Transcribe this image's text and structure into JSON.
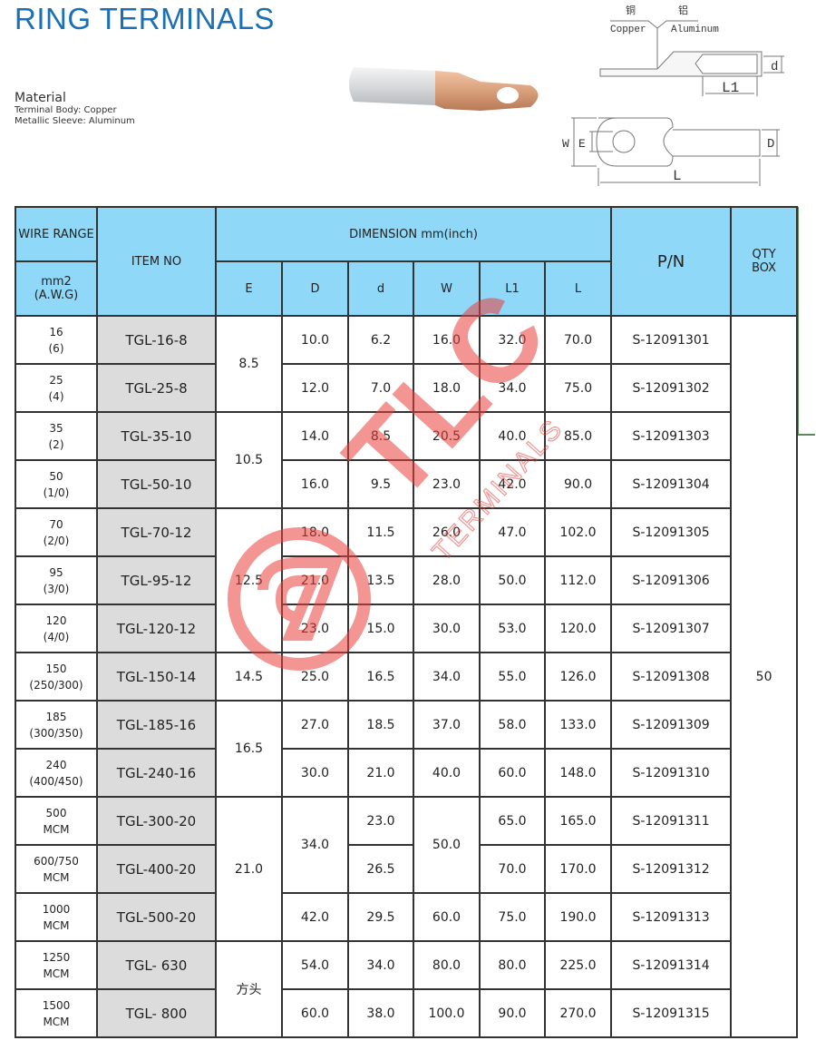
{
  "title": "RING TERMINALS",
  "material": {
    "heading": "Material",
    "lines": [
      "Terminal Body: Copper",
      "Metallic Sleeve: Aluminum"
    ]
  },
  "diagram": {
    "copper_cn": "铜",
    "aluminum_cn": "铝",
    "copper": "Copper",
    "aluminum": "Aluminum",
    "labels": {
      "d": "d",
      "L1": "L1",
      "W": "W",
      "E": "E",
      "D": "D",
      "L": "L"
    }
  },
  "watermark": {
    "brand": "TLC",
    "sub": "TERMINALS",
    "color": "#e8403c"
  },
  "table": {
    "headers": {
      "wire_range": "WIRE RANGE",
      "wire_unit_1": "mm2",
      "wire_unit_2": "(A.W.G)",
      "item_no": "ITEM NO",
      "dimension": "DIMENSION mm(inch)",
      "E": "E",
      "D": "D",
      "d": "d",
      "W": "W",
      "L1": "L1",
      "L": "L",
      "pn": "P/N",
      "qty_1": "QTY",
      "qty_2": "BOX"
    },
    "qty_box": "50",
    "rows": [
      {
        "wire1": "16",
        "wire2": "(6)",
        "item": "TGL-16-8",
        "E": "8.5",
        "D": "10.0",
        "d": "6.2",
        "W": "16.0",
        "L1": "32.0",
        "L": "70.0",
        "pn": "S-12091301"
      },
      {
        "wire1": "25",
        "wire2": "(4)",
        "item": "TGL-25-8",
        "E": null,
        "D": "12.0",
        "d": "7.0",
        "W": "18.0",
        "L1": "34.0",
        "L": "75.0",
        "pn": "S-12091302"
      },
      {
        "wire1": "35",
        "wire2": "(2)",
        "item": "TGL-35-10",
        "E": "10.5",
        "D": "14.0",
        "d": "8.5",
        "W": "20.5",
        "L1": "40.0",
        "L": "85.0",
        "pn": "S-12091303"
      },
      {
        "wire1": "50",
        "wire2": "(1/0)",
        "item": "TGL-50-10",
        "E": null,
        "D": "16.0",
        "d": "9.5",
        "W": "23.0",
        "L1": "42.0",
        "L": "90.0",
        "pn": "S-12091304"
      },
      {
        "wire1": "70",
        "wire2": "(2/0)",
        "item": "TGL-70-12",
        "E": "12.5",
        "D": "18.0",
        "d": "11.5",
        "W": "26.0",
        "L1": "47.0",
        "L": "102.0",
        "pn": "S-12091305"
      },
      {
        "wire1": "95",
        "wire2": "(3/0)",
        "item": "TGL-95-12",
        "E": null,
        "D": "21.0",
        "d": "13.5",
        "W": "28.0",
        "L1": "50.0",
        "L": "112.0",
        "pn": "S-12091306"
      },
      {
        "wire1": "120",
        "wire2": "(4/0)",
        "item": "TGL-120-12",
        "E": null,
        "D": "23.0",
        "d": "15.0",
        "W": "30.0",
        "L1": "53.0",
        "L": "120.0",
        "pn": "S-12091307"
      },
      {
        "wire1": "150",
        "wire2": "(250/300)",
        "item": "TGL-150-14",
        "E": "14.5",
        "D": "25.0",
        "d": "16.5",
        "W": "34.0",
        "L1": "55.0",
        "L": "126.0",
        "pn": "S-12091308"
      },
      {
        "wire1": "185",
        "wire2": "(300/350)",
        "item": "TGL-185-16",
        "E": "16.5",
        "D": "27.0",
        "d": "18.5",
        "W": "37.0",
        "L1": "58.0",
        "L": "133.0",
        "pn": "S-12091309"
      },
      {
        "wire1": "240",
        "wire2": "(400/450)",
        "item": "TGL-240-16",
        "E": null,
        "D": "30.0",
        "d": "21.0",
        "W": "40.0",
        "L1": "60.0",
        "L": "148.0",
        "pn": "S-12091310"
      },
      {
        "wire1": "500",
        "wire2": "MCM",
        "item": "TGL-300-20",
        "E": "21.0",
        "D": "34.0",
        "d": "23.0",
        "W": "50.0",
        "L1": "65.0",
        "L": "165.0",
        "pn": "S-12091311"
      },
      {
        "wire1": "600/750",
        "wire2": "MCM",
        "item": "TGL-400-20",
        "E": null,
        "D": null,
        "d": "26.5",
        "W": null,
        "L1": "70.0",
        "L": "170.0",
        "pn": "S-12091312"
      },
      {
        "wire1": "1000",
        "wire2": "MCM",
        "item": "TGL-500-20",
        "E": null,
        "D": "42.0",
        "d": "29.5",
        "W": "60.0",
        "L1": "75.0",
        "L": "190.0",
        "pn": "S-12091313"
      },
      {
        "wire1": "1250",
        "wire2": "MCM",
        "item": "TGL- 630",
        "E": "方头",
        "D": "54.0",
        "d": "34.0",
        "W": "80.0",
        "L1": "80.0",
        "L": "225.0",
        "pn": "S-12091314"
      },
      {
        "wire1": "1500",
        "wire2": "MCM",
        "item": "TGL- 800",
        "E": null,
        "D": "60.0",
        "d": "38.0",
        "W": "100.0",
        "L1": "90.0",
        "L": "270.0",
        "pn": "S-12091315"
      }
    ]
  },
  "colors": {
    "title": "#1a6fb5",
    "header_bg": "#8fd8f8",
    "item_bg": "#dcdcdc"
  }
}
